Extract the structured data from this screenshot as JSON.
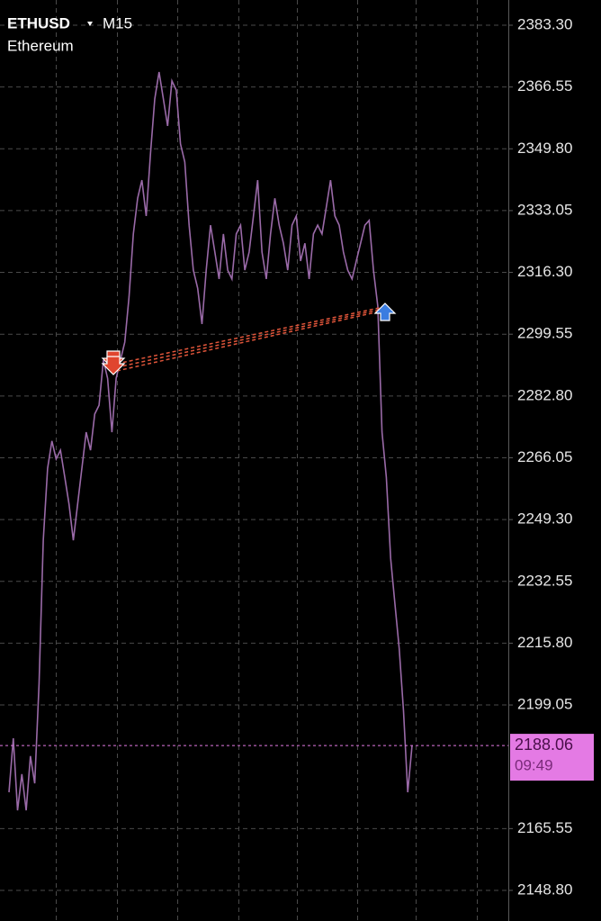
{
  "chart_data": {
    "type": "line",
    "symbol": "ETHUSD",
    "timeframe": "M15",
    "subtitle": "Ethereum",
    "series": [
      {
        "name": "ETHUSD",
        "color": "#9a6aa8",
        "values": [
          2175.4,
          2190.0,
          2170.5,
          2180.3,
          2170.5,
          2185.2,
          2177.8,
          2204.7,
          2243.7,
          2263.2,
          2270.6,
          2265.7,
          2268.1,
          2260.8,
          2253.5,
          2243.7,
          2253.5,
          2263.2,
          2273.0,
          2268.1,
          2277.9,
          2280.3,
          2292.5,
          2287.6,
          2273.0,
          2287.6,
          2292.5,
          2297.4,
          2309.6,
          2326.7,
          2336.4,
          2341.3,
          2331.6,
          2348.6,
          2363.3,
          2370.6,
          2363.3,
          2356.0,
          2368.2,
          2365.7,
          2351.1,
          2346.2,
          2329.1,
          2316.9,
          2312.0,
          2302.3,
          2316.9,
          2329.1,
          2321.8,
          2314.5,
          2326.7,
          2316.9,
          2314.5,
          2326.7,
          2329.1,
          2316.9,
          2321.8,
          2331.6,
          2341.3,
          2321.8,
          2314.5,
          2326.7,
          2336.4,
          2329.1,
          2324.2,
          2316.9,
          2329.1,
          2331.6,
          2319.4,
          2324.2,
          2314.5,
          2326.7,
          2329.1,
          2326.7,
          2334.0,
          2341.3,
          2331.6,
          2329.1,
          2321.8,
          2316.9,
          2314.5,
          2319.4,
          2324.2,
          2329.1,
          2330.4,
          2316.9,
          2307.2,
          2273.0,
          2260.8,
          2238.8,
          2226.6,
          2214.4,
          2197.4,
          2175.4,
          2188.06
        ]
      }
    ],
    "ylim": [
      2140.5,
      2390.13
    ],
    "yticks": [
      {
        "value": 2383.3,
        "label": "2383.30"
      },
      2366.55,
      {
        "value": 2349.8,
        "label": "2349.80"
      },
      2333.05,
      {
        "value": 2316.3,
        "label": "2316.30"
      },
      2299.55,
      {
        "value": 2282.8,
        "label": "2282.80"
      },
      2266.05,
      {
        "value": 2249.3,
        "label": "2249.30"
      },
      2232.55,
      {
        "value": 2215.8,
        "label": "2215.80"
      },
      2199.05,
      2165.55,
      {
        "value": 2148.8,
        "label": "2148.80"
      }
    ],
    "grid": true,
    "current_price": 2188.06,
    "current_price_color": "#e47ae4",
    "countdown": "09:49"
  }
}
